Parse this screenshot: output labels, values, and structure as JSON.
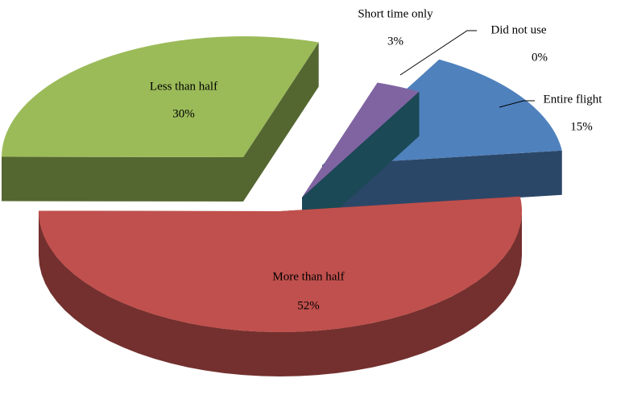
{
  "chart_data": {
    "type": "pie",
    "categories": [
      "Entire flight",
      "More than half",
      "Less than half",
      "Short time only",
      "Did not use"
    ],
    "values": [
      15,
      52,
      30,
      3,
      0
    ],
    "value_labels": [
      "15%",
      "52%",
      "30%",
      "3%",
      "0%"
    ],
    "colors": [
      "#4f81bd",
      "#c0504d",
      "#9bbb59",
      "#8064a2",
      "#31859c"
    ]
  }
}
